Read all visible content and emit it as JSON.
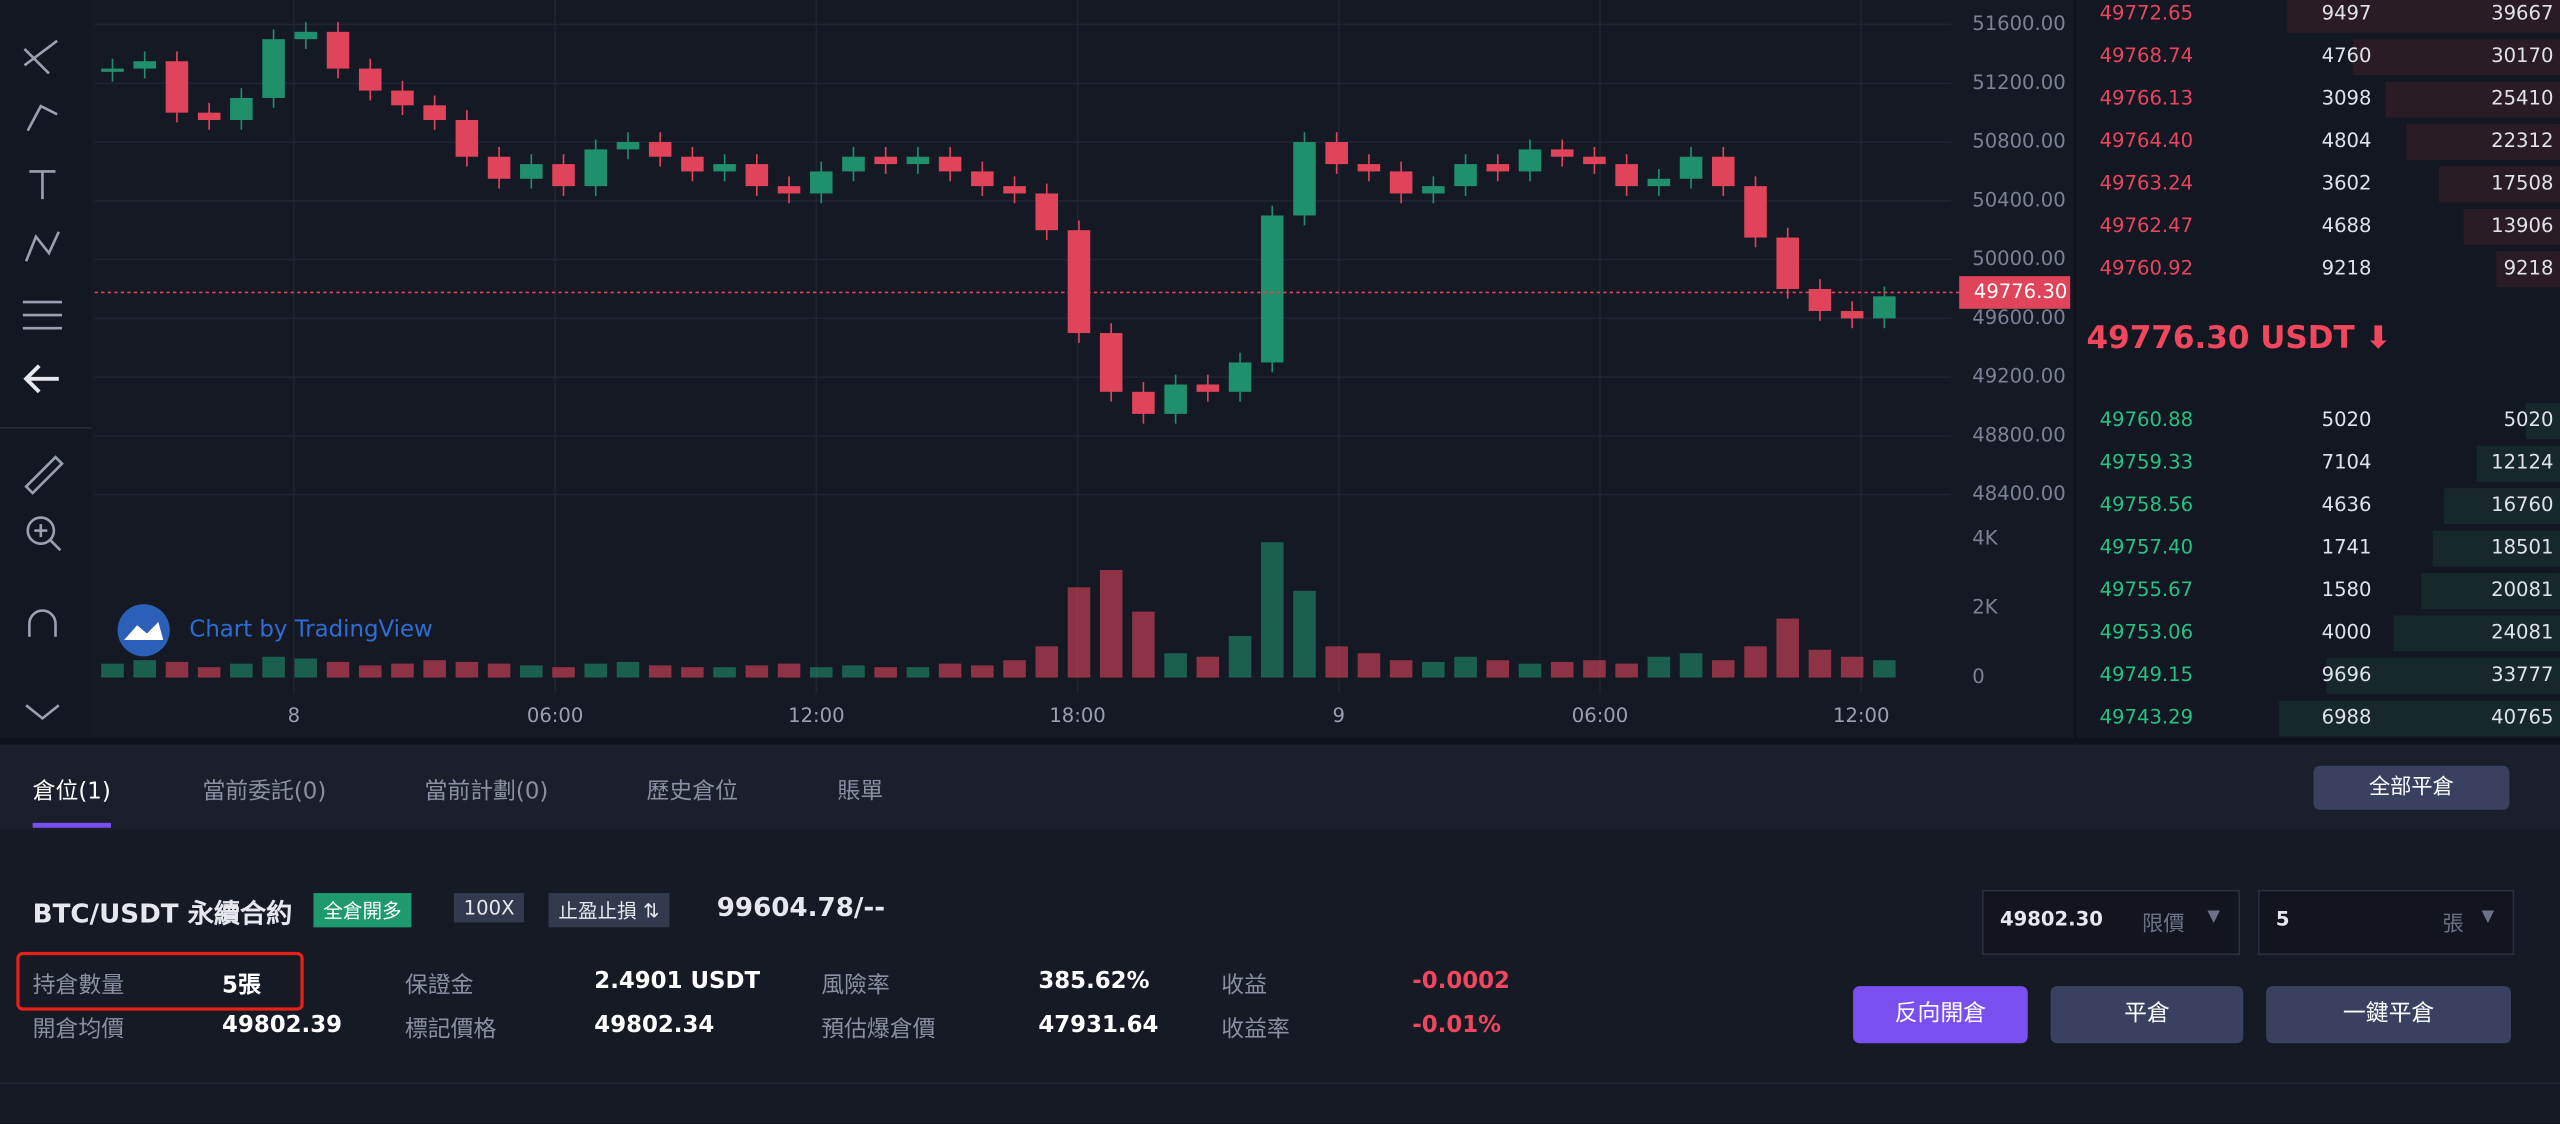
{
  "chart_data": {
    "type": "candlestick",
    "watermark": "Chart by TradingView",
    "closes": [
      51300,
      51350,
      51000,
      50950,
      51100,
      51500,
      51550,
      51300,
      51150,
      51050,
      50950,
      50700,
      50550,
      50650,
      50500,
      50750,
      50800,
      50700,
      50600,
      50650,
      50500,
      50450,
      50600,
      50700,
      50650,
      50700,
      50600,
      50500,
      50450,
      50200,
      49500,
      49100,
      48950,
      49150,
      49100,
      49300,
      50300,
      50800,
      50650,
      50600,
      50450,
      50500,
      50650,
      50600,
      50750,
      50700,
      50650,
      50500,
      50550,
      50700,
      50500,
      50150,
      49800,
      49650,
      49600,
      49750
    ],
    "volumes": [
      400,
      500,
      450,
      300,
      400,
      600,
      550,
      450,
      350,
      400,
      500,
      450,
      400,
      350,
      300,
      400,
      450,
      350,
      300,
      300,
      350,
      400,
      300,
      350,
      300,
      300,
      400,
      350,
      500,
      900,
      2600,
      3100,
      1900,
      700,
      600,
      1200,
      3900,
      2500,
      900,
      700,
      500,
      450,
      600,
      500,
      400,
      450,
      500,
      400,
      600,
      700,
      500,
      900,
      1700,
      800,
      600,
      500
    ],
    "ylim": [
      48400,
      51600
    ],
    "yticks": [
      {
        "value": 48400,
        "label": "48400.00"
      },
      {
        "value": 48800,
        "label": "48800.00"
      },
      {
        "value": 49200,
        "label": "49200.00"
      },
      {
        "value": 49600,
        "label": "49600.00"
      },
      {
        "value": 50000,
        "label": "50000.00"
      },
      {
        "value": 50400,
        "label": "50400.00"
      },
      {
        "value": 50800,
        "label": "50800.00"
      },
      {
        "value": 51200,
        "label": "51200.00"
      },
      {
        "value": 51600,
        "label": "51600.00"
      }
    ],
    "last_price": {
      "value": 49776.3,
      "label": "49776.30"
    },
    "volume_ylim": [
      0,
      4400
    ],
    "volume_ticks": [
      0,
      {
        "value": 2000,
        "label": "2K"
      },
      {
        "value": 4000,
        "label": "4K"
      }
    ],
    "xticks": [
      "8",
      "06:00",
      "12:00",
      "18:00",
      "9",
      "06:00",
      "12:00"
    ],
    "up_color": "#1f8f6c",
    "down_color": "#e0445b"
  },
  "orderbook": {
    "asks": [
      [
        "49772.65",
        "9497",
        "39667"
      ],
      [
        "49768.74",
        "4760",
        "30170"
      ],
      [
        "49766.13",
        "3098",
        "25410"
      ],
      [
        "49764.40",
        "4804",
        "22312"
      ],
      [
        "49763.24",
        "3602",
        "17508"
      ],
      [
        "49762.47",
        "4688",
        "13906"
      ],
      [
        "49760.92",
        "9218",
        "9218"
      ]
    ],
    "last": "49776.30 USDT ⬇",
    "bids": [
      [
        "49760.88",
        "5020",
        "5020"
      ],
      [
        "49759.33",
        "7104",
        "12124"
      ],
      [
        "49758.56",
        "4636",
        "16760"
      ],
      [
        "49757.40",
        "1741",
        "18501"
      ],
      [
        "49755.67",
        "1580",
        "20081"
      ],
      [
        "49753.06",
        "4000",
        "24081"
      ],
      [
        "49749.15",
        "9696",
        "33777"
      ],
      [
        "49743.29",
        "6988",
        "40765"
      ]
    ],
    "depth_max": 45000
  },
  "panel": {
    "tabs": [
      "倉位(1)",
      "當前委託(0)",
      "當前計劃(0)",
      "歷史倉位",
      "賬單"
    ],
    "close_all": "全部平倉",
    "symbol": "BTC/USDT 永續合約",
    "tags": [
      "全倉開多",
      "100X",
      "止盈止損 ⇅"
    ],
    "price": "99604.78/--",
    "row1": [
      [
        "持倉數量",
        "5張"
      ],
      [
        "保證金",
        "2.4901 USDT"
      ],
      [
        "風險率",
        "385.62%"
      ],
      [
        "收益",
        "-0.0002"
      ]
    ],
    "row2": [
      [
        "開倉均價",
        "49802.39"
      ],
      [
        "標記價格",
        "49802.34"
      ],
      [
        "預估爆倉價",
        "47931.64"
      ],
      [
        "收益率",
        "-0.01%"
      ]
    ],
    "order_price": "49802.30",
    "order_type": "限價",
    "order_qty": "5",
    "order_unit": "張",
    "buttons": [
      "反向開倉",
      "平倉",
      "一鍵平倉"
    ]
  }
}
